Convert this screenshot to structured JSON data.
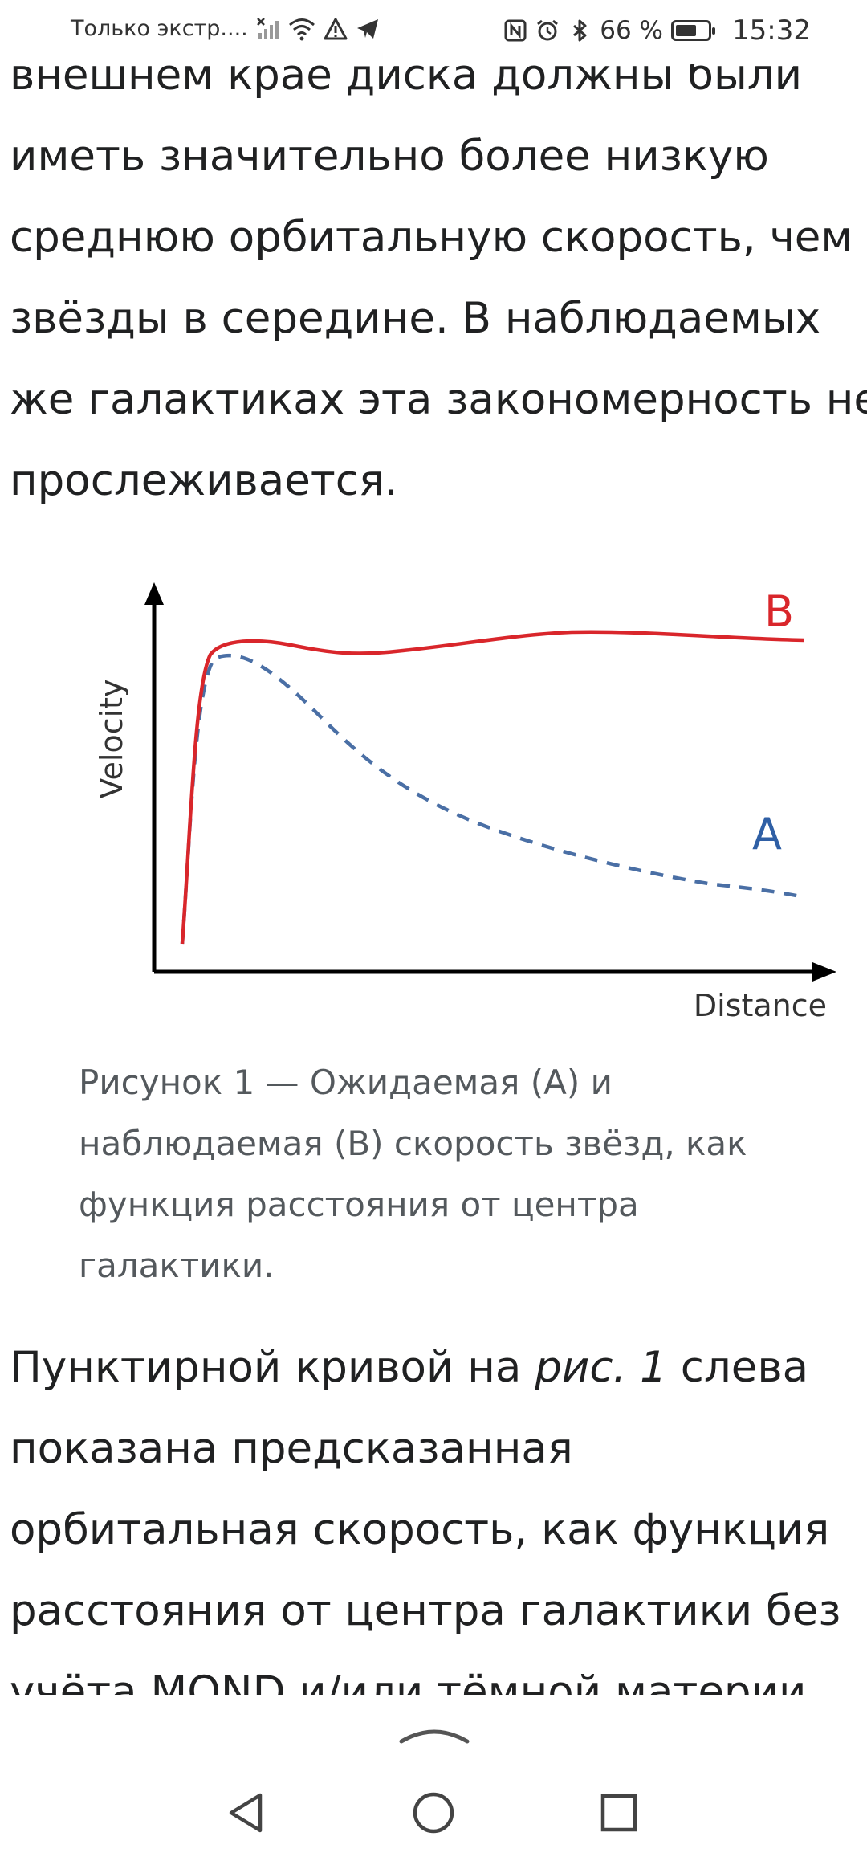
{
  "status_bar": {
    "carrier": "Только экстр....",
    "battery_percent": "66 %",
    "battery_level": 0.66,
    "time": "15:32",
    "icons": [
      "signal-off-icon",
      "wifi-icon",
      "warning-icon",
      "telegram-icon",
      "nfc-icon",
      "alarm-icon",
      "bluetooth-icon",
      "battery-icon"
    ]
  },
  "article": {
    "para_top_lines": [
      "внешнем крае диска должны были",
      "иметь значительно более низкую",
      "среднюю орбитальную скорость, чем",
      "звёзды в середине. В наблюдаемых",
      "же галактиках эта закономерность не",
      "прослеживается."
    ],
    "figure": {
      "y_axis_label": "Velocity",
      "x_axis_label": "Distance",
      "label_a": "A",
      "label_b": "B",
      "color_a": "#4a6fa5",
      "color_b": "#d9262b"
    },
    "caption_lines": [
      "Рисунок 1 — Ожидаемая (A) и",
      "наблюдаемая (B) скорость звёзд, как",
      "функция расстояния от центра",
      "галактики."
    ],
    "para_bottom": {
      "line1_before": "Пунктирной кривой на ",
      "line1_italic": "рис. 1",
      "line1_after": " слева",
      "lines": [
        "показана предсказанная",
        "орбитальная скорость, как функция",
        "расстояния от центра галактики без",
        "учёта MOND и/или тёмной материи."
      ]
    }
  },
  "chart_data": {
    "type": "line",
    "xlabel": "Distance",
    "ylabel": "Velocity",
    "series": [
      {
        "name": "A",
        "style": "dashed",
        "color": "#4a6fa5",
        "x": [
          0.05,
          0.1,
          0.15,
          0.25,
          0.4,
          0.55,
          0.7,
          0.85,
          1.0
        ],
        "y": [
          0.1,
          0.8,
          0.9,
          0.72,
          0.5,
          0.38,
          0.3,
          0.26,
          0.24
        ]
      },
      {
        "name": "B",
        "style": "solid",
        "color": "#d9262b",
        "x": [
          0.05,
          0.1,
          0.15,
          0.25,
          0.4,
          0.55,
          0.7,
          0.85,
          1.0
        ],
        "y": [
          0.1,
          0.8,
          0.95,
          0.92,
          0.94,
          0.95,
          0.97,
          0.97,
          0.96
        ]
      }
    ]
  }
}
